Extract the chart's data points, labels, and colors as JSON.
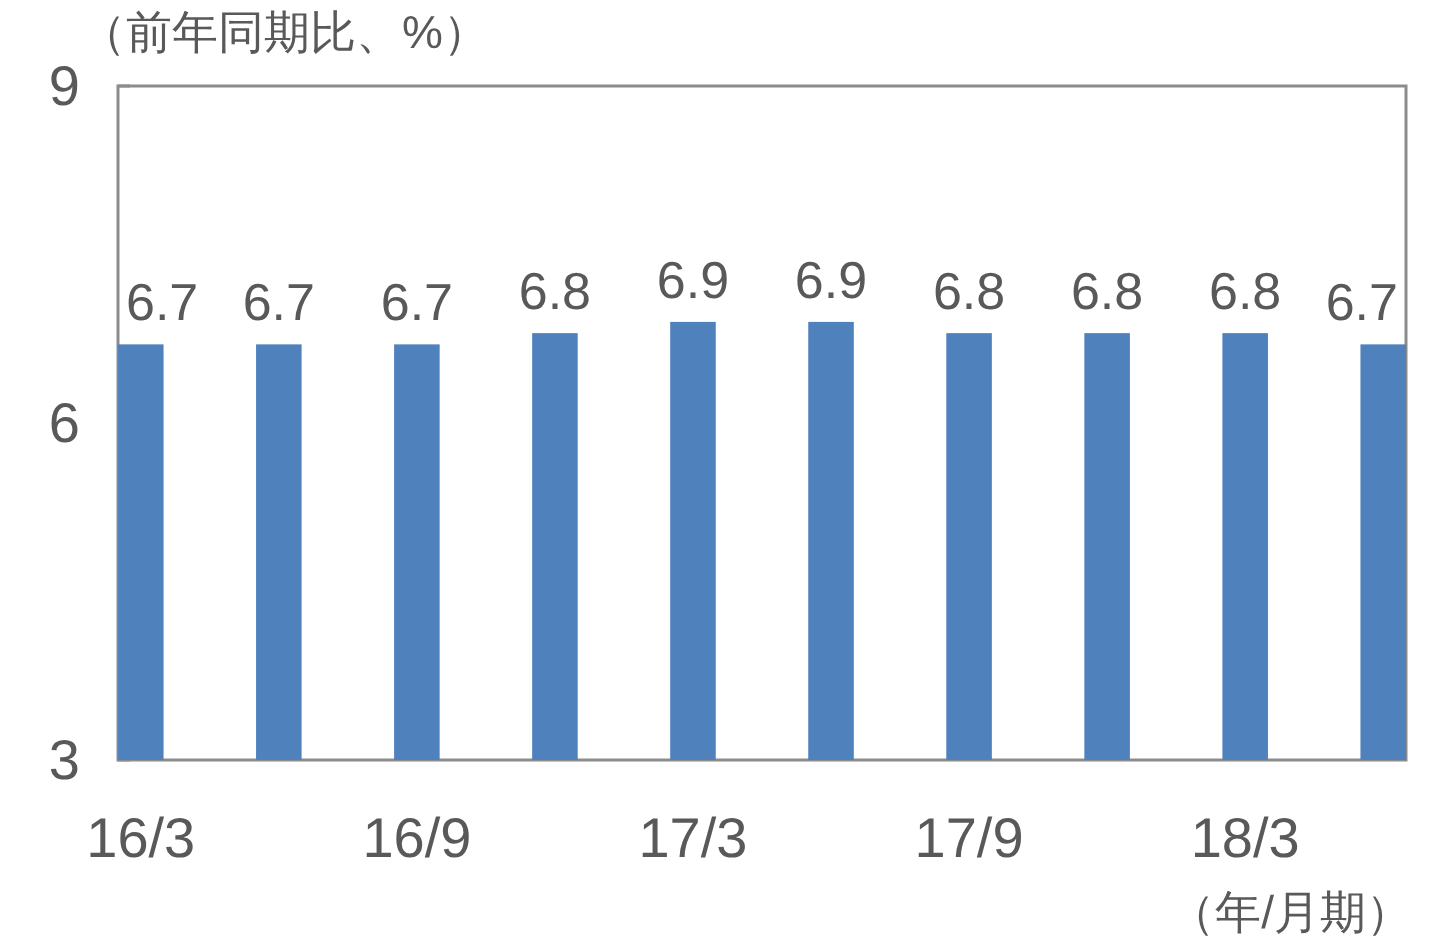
{
  "chart_data": {
    "type": "bar",
    "ylabel": "（前年同期比、%）",
    "xlabel": "（年/月期）",
    "categories": [
      "16/3",
      null,
      "16/9",
      null,
      "17/3",
      null,
      "17/9",
      null,
      "18/3",
      null
    ],
    "values": [
      6.7,
      6.7,
      6.7,
      6.8,
      6.9,
      6.9,
      6.8,
      6.8,
      6.8,
      6.7
    ],
    "color": "#4f81bd",
    "ylim": [
      3,
      9
    ],
    "yticks": [
      3,
      6,
      9
    ],
    "data_labels": true
  }
}
